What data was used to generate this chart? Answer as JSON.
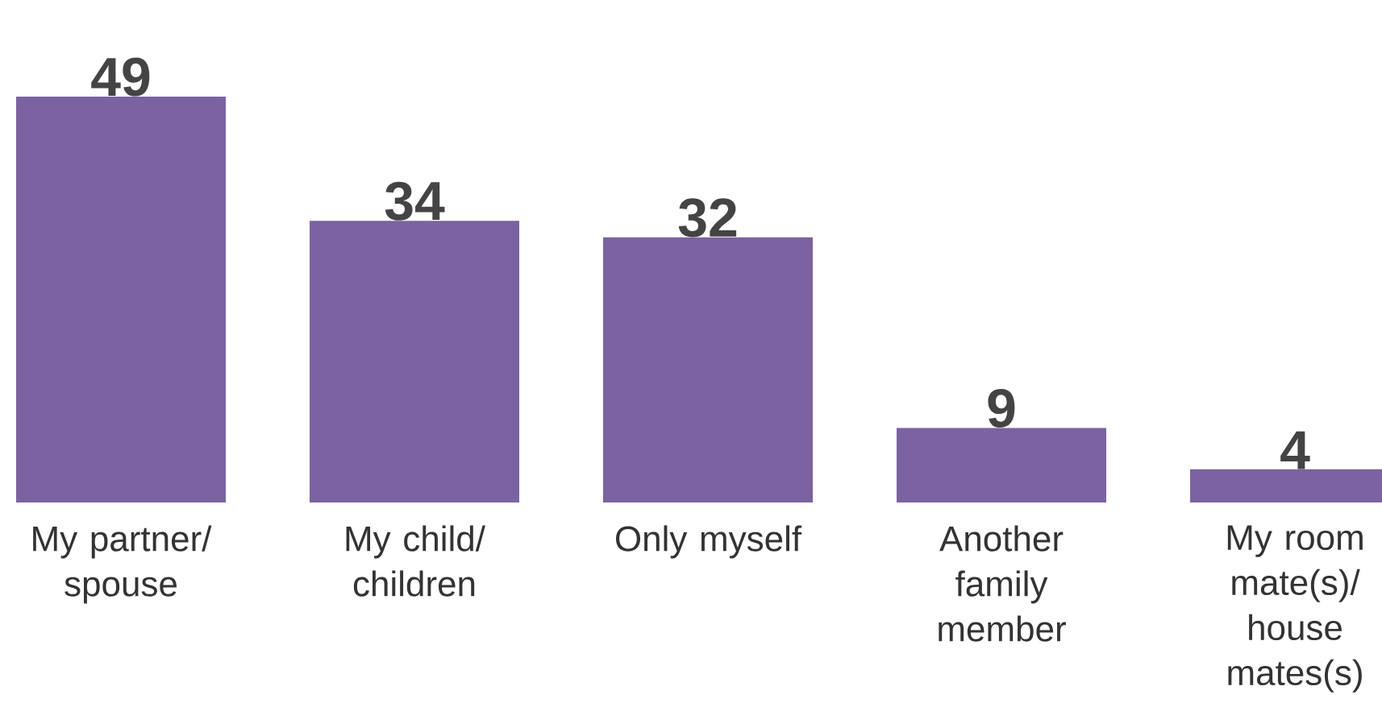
{
  "chart_data": {
    "type": "bar",
    "categories": [
      "My partner/spouse",
      "My child/children",
      "Only myself",
      "Another family member",
      "My room mate(s)/house mates(s)"
    ],
    "values": [
      49,
      34,
      32,
      9,
      4
    ],
    "color": "#7b62a0",
    "data_labels": true
  }
}
